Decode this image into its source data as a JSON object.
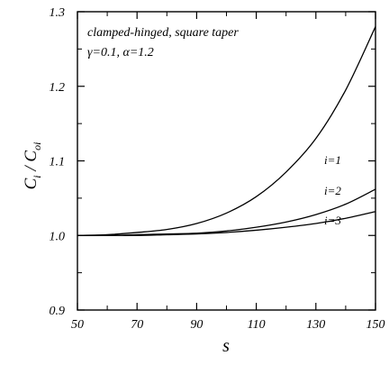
{
  "chart_data": {
    "type": "line",
    "xlabel": "s",
    "ylabel_main": "C",
    "ylabel_sub_num": "i",
    "ylabel_den": "C",
    "ylabel_sub_den": "oi",
    "xlim": [
      50,
      150
    ],
    "ylim": [
      0.9,
      1.3
    ],
    "x_ticks": [
      50,
      70,
      90,
      110,
      130,
      150
    ],
    "x_tick_labels": [
      "50",
      "70",
      "90",
      "110",
      "130",
      "150"
    ],
    "y_ticks": [
      0.9,
      1.0,
      1.1,
      1.2,
      1.3
    ],
    "y_tick_labels": [
      "0.9",
      "1.0",
      "1.1",
      "1.2",
      "1.3"
    ],
    "annotation_line1": "clamped-hinged, square taper",
    "annotation_line2": "γ=0.1, α=1.2",
    "grid": false,
    "series": [
      {
        "name": "i=1",
        "x": [
          50,
          60,
          70,
          80,
          90,
          100,
          110,
          120,
          130,
          140,
          150
        ],
        "values": [
          1.0,
          1.001,
          1.004,
          1.008,
          1.016,
          1.03,
          1.052,
          1.085,
          1.13,
          1.195,
          1.28
        ]
      },
      {
        "name": "i=2",
        "x": [
          50,
          60,
          70,
          80,
          90,
          100,
          110,
          120,
          130,
          140,
          150
        ],
        "values": [
          1.0,
          1.0,
          1.001,
          1.002,
          1.003,
          1.006,
          1.011,
          1.018,
          1.028,
          1.042,
          1.062
        ]
      },
      {
        "name": "i=3",
        "x": [
          50,
          60,
          70,
          80,
          90,
          100,
          110,
          120,
          130,
          140,
          150
        ],
        "values": [
          1.0,
          1.0,
          1.0,
          1.001,
          1.002,
          1.004,
          1.007,
          1.011,
          1.016,
          1.023,
          1.032
        ]
      }
    ]
  }
}
